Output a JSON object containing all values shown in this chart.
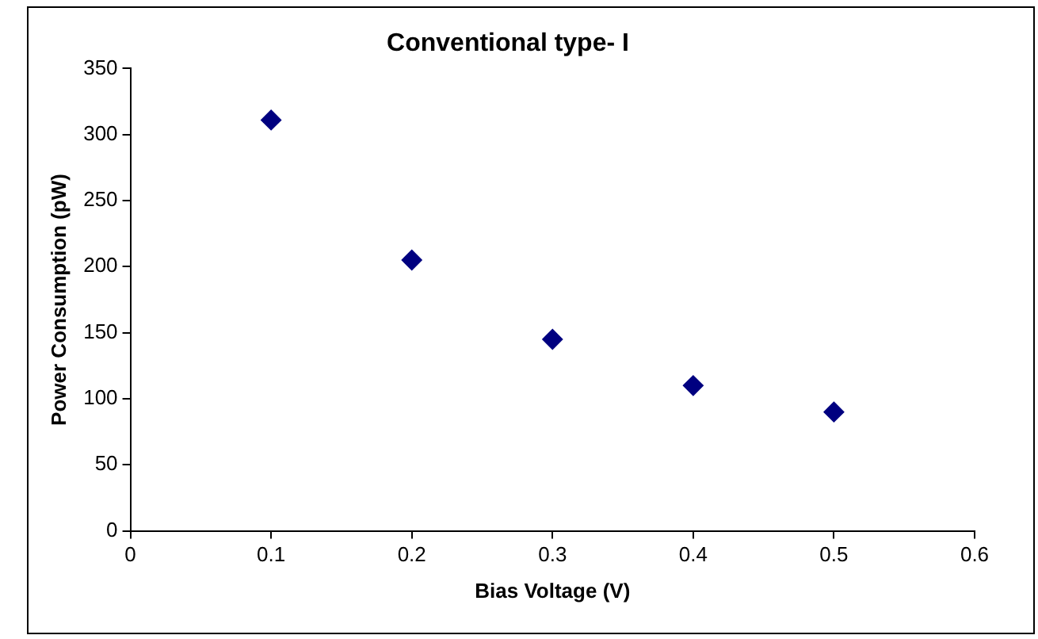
{
  "chart_data": {
    "type": "scatter",
    "title": "Conventional type- I",
    "xlabel": "Bias Voltage (V)",
    "ylabel": "Power Consumption (pW)",
    "x": [
      0.1,
      0.2,
      0.3,
      0.4,
      0.5
    ],
    "series": [
      {
        "color": "#000080",
        "values": [
          311,
          205,
          145,
          110,
          90
        ]
      }
    ],
    "xlim": [
      0,
      0.6
    ],
    "xticks": [
      0,
      0.1,
      0.2,
      0.3,
      0.4,
      0.5,
      0.6
    ],
    "ylim": [
      0,
      350
    ],
    "yticks": [
      0,
      50,
      100,
      150,
      200,
      250,
      300,
      350
    ],
    "marker": "diamond",
    "grid": false,
    "legend": false
  }
}
